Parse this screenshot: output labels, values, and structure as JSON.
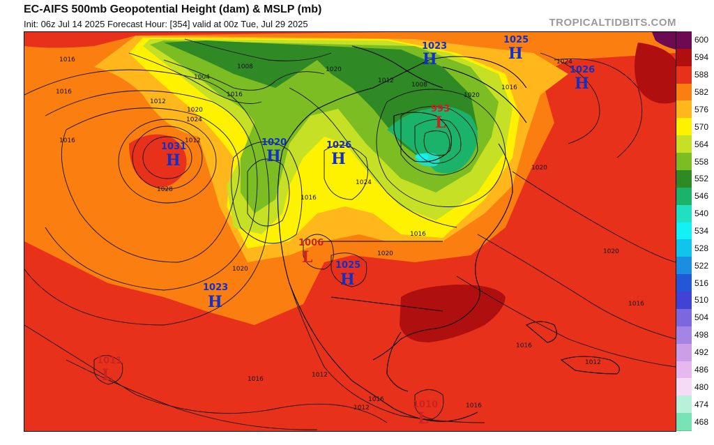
{
  "header": {
    "title": "EC-AIFS 500mb Geopotential Height (dam) & MSLP (mb)",
    "subtitle": "Init: 06z Jul 14 2025   Forecast Hour: [354]   valid at 00z Tue, Jul 29 2025",
    "brand": "TROPICALTIDBITS.COM"
  },
  "legend": [
    {
      "label": "600",
      "color": "#6e0a52"
    },
    {
      "label": "594",
      "color": "#b00f10"
    },
    {
      "label": "588",
      "color": "#e8311b"
    },
    {
      "label": "582",
      "color": "#fb7e10"
    },
    {
      "label": "576",
      "color": "#ffb71c"
    },
    {
      "label": "570",
      "color": "#fff200"
    },
    {
      "label": "564",
      "color": "#c6e025"
    },
    {
      "label": "558",
      "color": "#7cbd23"
    },
    {
      "label": "552",
      "color": "#2f8a25"
    },
    {
      "label": "546",
      "color": "#1bb36a"
    },
    {
      "label": "540",
      "color": "#20e0c2"
    },
    {
      "label": "534",
      "color": "#12f2f6"
    },
    {
      "label": "528",
      "color": "#10c4ec"
    },
    {
      "label": "522",
      "color": "#1c8ee2"
    },
    {
      "label": "516",
      "color": "#2456d8"
    },
    {
      "label": "510",
      "color": "#4142d6"
    },
    {
      "label": "504",
      "color": "#7d67de"
    },
    {
      "label": "498",
      "color": "#a484e4"
    },
    {
      "label": "492",
      "color": "#cd9ee8"
    },
    {
      "label": "486",
      "color": "#e6b8ef"
    },
    {
      "label": "480",
      "color": "#f5dbf6"
    },
    {
      "label": "474",
      "color": "#b8f0da"
    },
    {
      "label": "468",
      "color": "#78e3b4"
    }
  ],
  "pressure_centers": [
    {
      "type": "H",
      "value": "1031"
    },
    {
      "type": "H",
      "value": "1020"
    },
    {
      "type": "H",
      "value": "1026"
    },
    {
      "type": "H",
      "value": "1023"
    },
    {
      "type": "H",
      "value": "1025"
    },
    {
      "type": "H",
      "value": "1025"
    },
    {
      "type": "H",
      "value": "1026"
    },
    {
      "type": "H",
      "value": "1023"
    },
    {
      "type": "L",
      "value": "993"
    },
    {
      "type": "L",
      "value": "1006"
    },
    {
      "type": "L",
      "value": "1011"
    },
    {
      "type": "L",
      "value": "1010"
    }
  ],
  "isobar_labels": [
    "1016",
    "1016",
    "1016",
    "1012",
    "1012",
    "1004",
    "1008",
    "1016",
    "1020",
    "1020",
    "1024",
    "1024",
    "1028",
    "1024",
    "1020",
    "1016",
    "1020",
    "1020",
    "1016",
    "1020",
    "1016",
    "1012",
    "1012",
    "1016",
    "1016",
    "1016",
    "1012",
    "1016",
    "1016",
    "1020",
    "1008",
    "1012"
  ]
}
